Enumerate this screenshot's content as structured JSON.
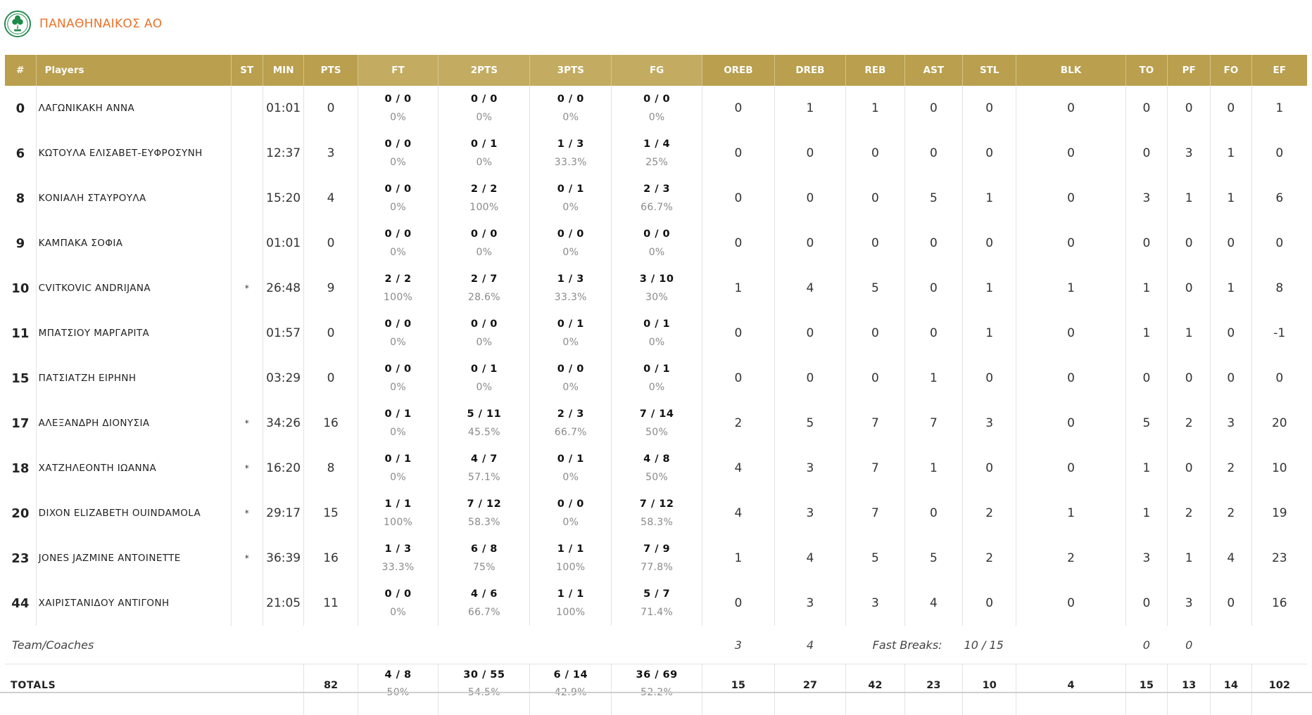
{
  "team": {
    "name": "ΠΑΝΑΘΗΝΑΙΚΟΣ ΑΟ"
  },
  "colors": {
    "header_gold": "#c3ac61",
    "header_gold_alt": "#b99f4e",
    "team_orange": "#e8732b",
    "logo_green": "#1e8a4a"
  },
  "columns": [
    "#",
    "Players",
    "ST",
    "MIN",
    "PTS",
    "FT",
    "2PTS",
    "3PTS",
    "FG",
    "OREB",
    "DREB",
    "REB",
    "AST",
    "STL",
    "BLK",
    "TO",
    "PF",
    "FO",
    "EF"
  ],
  "players": [
    {
      "num": "0",
      "name": "ΛΑΓΩΝΙΚΑΚΗ ΑΝΝΑ",
      "st": "",
      "min": "01:01",
      "pts": "0",
      "ft": "0 / 0",
      "ft_pct": "0%",
      "p2": "0 / 0",
      "p2_pct": "0%",
      "p3": "0 / 0",
      "p3_pct": "0%",
      "fg": "0 / 0",
      "fg_pct": "0%",
      "oreb": "0",
      "dreb": "1",
      "reb": "1",
      "ast": "0",
      "stl": "0",
      "blk": "0",
      "to": "0",
      "pf": "0",
      "fo": "0",
      "ef": "1"
    },
    {
      "num": "6",
      "name": "ΚΩΤΟΥΛΑ ΕΛΙΣΑΒΕΤ-ΕΥΦΡΟΣΥΝΗ",
      "st": "",
      "min": "12:37",
      "pts": "3",
      "ft": "0 / 0",
      "ft_pct": "0%",
      "p2": "0 / 1",
      "p2_pct": "0%",
      "p3": "1 / 3",
      "p3_pct": "33.3%",
      "fg": "1 / 4",
      "fg_pct": "25%",
      "oreb": "0",
      "dreb": "0",
      "reb": "0",
      "ast": "0",
      "stl": "0",
      "blk": "0",
      "to": "0",
      "pf": "3",
      "fo": "1",
      "ef": "0"
    },
    {
      "num": "8",
      "name": "ΚΟΝΙΑΛΗ ΣΤΑΥΡΟΥΛΑ",
      "st": "",
      "min": "15:20",
      "pts": "4",
      "ft": "0 / 0",
      "ft_pct": "0%",
      "p2": "2 / 2",
      "p2_pct": "100%",
      "p3": "0 / 1",
      "p3_pct": "0%",
      "fg": "2 / 3",
      "fg_pct": "66.7%",
      "oreb": "0",
      "dreb": "0",
      "reb": "0",
      "ast": "5",
      "stl": "1",
      "blk": "0",
      "to": "3",
      "pf": "1",
      "fo": "1",
      "ef": "6"
    },
    {
      "num": "9",
      "name": "ΚΑΜΠΑΚΑ ΣΟΦΙΑ",
      "st": "",
      "min": "01:01",
      "pts": "0",
      "ft": "0 / 0",
      "ft_pct": "0%",
      "p2": "0 / 0",
      "p2_pct": "0%",
      "p3": "0 / 0",
      "p3_pct": "0%",
      "fg": "0 / 0",
      "fg_pct": "0%",
      "oreb": "0",
      "dreb": "0",
      "reb": "0",
      "ast": "0",
      "stl": "0",
      "blk": "0",
      "to": "0",
      "pf": "0",
      "fo": "0",
      "ef": "0"
    },
    {
      "num": "10",
      "name": "CVITKOVIC ANDRIJANA",
      "st": "*",
      "min": "26:48",
      "pts": "9",
      "ft": "2 / 2",
      "ft_pct": "100%",
      "p2": "2 / 7",
      "p2_pct": "28.6%",
      "p3": "1 / 3",
      "p3_pct": "33.3%",
      "fg": "3 / 10",
      "fg_pct": "30%",
      "oreb": "1",
      "dreb": "4",
      "reb": "5",
      "ast": "0",
      "stl": "1",
      "blk": "1",
      "to": "1",
      "pf": "0",
      "fo": "1",
      "ef": "8"
    },
    {
      "num": "11",
      "name": "ΜΠΑΤΣΙΟΥ ΜΑΡΓΑΡΙΤΑ",
      "st": "",
      "min": "01:57",
      "pts": "0",
      "ft": "0 / 0",
      "ft_pct": "0%",
      "p2": "0 / 0",
      "p2_pct": "0%",
      "p3": "0 / 1",
      "p3_pct": "0%",
      "fg": "0 / 1",
      "fg_pct": "0%",
      "oreb": "0",
      "dreb": "0",
      "reb": "0",
      "ast": "0",
      "stl": "1",
      "blk": "0",
      "to": "1",
      "pf": "1",
      "fo": "0",
      "ef": "-1"
    },
    {
      "num": "15",
      "name": "ΠΑΤΣΙΑΤΖΗ ΕΙΡΗΝΗ",
      "st": "",
      "min": "03:29",
      "pts": "0",
      "ft": "0 / 0",
      "ft_pct": "0%",
      "p2": "0 / 1",
      "p2_pct": "0%",
      "p3": "0 / 0",
      "p3_pct": "0%",
      "fg": "0 / 1",
      "fg_pct": "0%",
      "oreb": "0",
      "dreb": "0",
      "reb": "0",
      "ast": "1",
      "stl": "0",
      "blk": "0",
      "to": "0",
      "pf": "0",
      "fo": "0",
      "ef": "0"
    },
    {
      "num": "17",
      "name": "ΑΛΕΞΑΝΔΡΗ ΔΙΟΝΥΣΙΑ",
      "st": "*",
      "min": "34:26",
      "pts": "16",
      "ft": "0 / 1",
      "ft_pct": "0%",
      "p2": "5 / 11",
      "p2_pct": "45.5%",
      "p3": "2 / 3",
      "p3_pct": "66.7%",
      "fg": "7 / 14",
      "fg_pct": "50%",
      "oreb": "2",
      "dreb": "5",
      "reb": "7",
      "ast": "7",
      "stl": "3",
      "blk": "0",
      "to": "5",
      "pf": "2",
      "fo": "3",
      "ef": "20"
    },
    {
      "num": "18",
      "name": "ΧΑΤΖΗΛΕΟΝΤΗ ΙΩΑΝΝΑ",
      "st": "*",
      "min": "16:20",
      "pts": "8",
      "ft": "0 / 1",
      "ft_pct": "0%",
      "p2": "4 / 7",
      "p2_pct": "57.1%",
      "p3": "0 / 1",
      "p3_pct": "0%",
      "fg": "4 / 8",
      "fg_pct": "50%",
      "oreb": "4",
      "dreb": "3",
      "reb": "7",
      "ast": "1",
      "stl": "0",
      "blk": "0",
      "to": "1",
      "pf": "0",
      "fo": "2",
      "ef": "10"
    },
    {
      "num": "20",
      "name": "DIXON ELIZABETH OUINDAMOLA",
      "st": "*",
      "min": "29:17",
      "pts": "15",
      "ft": "1 / 1",
      "ft_pct": "100%",
      "p2": "7 / 12",
      "p2_pct": "58.3%",
      "p3": "0 / 0",
      "p3_pct": "0%",
      "fg": "7 / 12",
      "fg_pct": "58.3%",
      "oreb": "4",
      "dreb": "3",
      "reb": "7",
      "ast": "0",
      "stl": "2",
      "blk": "1",
      "to": "1",
      "pf": "2",
      "fo": "2",
      "ef": "19"
    },
    {
      "num": "23",
      "name": "JONES JAZMINE ANTOINETTE",
      "st": "*",
      "min": "36:39",
      "pts": "16",
      "ft": "1 / 3",
      "ft_pct": "33.3%",
      "p2": "6 / 8",
      "p2_pct": "75%",
      "p3": "1 / 1",
      "p3_pct": "100%",
      "fg": "7 / 9",
      "fg_pct": "77.8%",
      "oreb": "1",
      "dreb": "4",
      "reb": "5",
      "ast": "5",
      "stl": "2",
      "blk": "2",
      "to": "3",
      "pf": "1",
      "fo": "4",
      "ef": "23"
    },
    {
      "num": "44",
      "name": "ΧΑΙΡΙΣΤΑΝΙΔΟΥ ΑΝΤΙΓΟΝΗ",
      "st": "",
      "min": "21:05",
      "pts": "11",
      "ft": "0 / 0",
      "ft_pct": "0%",
      "p2": "4 / 6",
      "p2_pct": "66.7%",
      "p3": "1 / 1",
      "p3_pct": "100%",
      "fg": "5 / 7",
      "fg_pct": "71.4%",
      "oreb": "0",
      "dreb": "3",
      "reb": "3",
      "ast": "4",
      "stl": "0",
      "blk": "0",
      "to": "0",
      "pf": "3",
      "fo": "0",
      "ef": "16"
    }
  ],
  "team_coaches": {
    "label": "Team/Coaches",
    "oreb": "3",
    "dreb": "4",
    "fast_breaks_label": "Fast Breaks:",
    "fast_breaks_value": "10 / 15",
    "to": "0",
    "pf": "0"
  },
  "totals": {
    "label": "TOTALS",
    "pts": "82",
    "ft": "4 / 8",
    "ft_pct": "50%",
    "p2": "30 / 55",
    "p2_pct": "54.5%",
    "p3": "6 / 14",
    "p3_pct": "42.9%",
    "fg": "36 / 69",
    "fg_pct": "52.2%",
    "oreb": "15",
    "dreb": "27",
    "reb": "42",
    "ast": "23",
    "stl": "10",
    "blk": "4",
    "to": "15",
    "pf": "13",
    "fo": "14",
    "ef": "102"
  }
}
